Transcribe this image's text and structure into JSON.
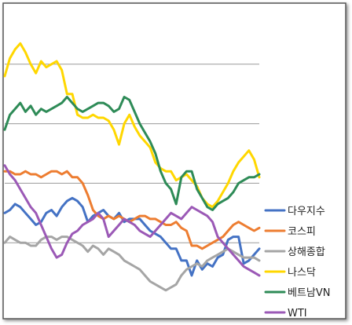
{
  "chart_data": {
    "type": "line",
    "title": "",
    "xlabel": "",
    "ylabel": "",
    "ylim": [
      0,
      100
    ],
    "grid": true,
    "legend_position": "right",
    "x": [
      1,
      2,
      3,
      4,
      5,
      6,
      7,
      8,
      9,
      10,
      11,
      12,
      13,
      14,
      15,
      16,
      17,
      18,
      19,
      20,
      21,
      22,
      23,
      24,
      25,
      26,
      27,
      28,
      29,
      30,
      31,
      32,
      33,
      34,
      35,
      36,
      37,
      38,
      39,
      40,
      41,
      42,
      43,
      44,
      45,
      46,
      47,
      48,
      49,
      50
    ],
    "series": [
      {
        "name": "다우지수",
        "color": "#4472C4",
        "values": [
          30,
          31,
          33,
          32,
          30,
          28,
          26,
          27,
          30,
          31,
          29,
          32,
          34,
          35,
          34,
          32,
          27,
          29,
          30,
          31,
          29,
          28,
          30,
          27,
          28,
          28,
          28,
          26,
          24,
          23,
          22,
          20,
          18,
          18,
          14,
          14,
          9,
          14,
          11,
          13,
          12,
          15,
          16,
          21,
          22,
          22,
          13,
          14,
          16,
          18
        ]
      },
      {
        "name": "코스피",
        "color": "#ED7D31",
        "values": [
          44,
          44,
          43,
          43,
          44,
          43,
          43,
          42,
          43,
          44,
          44,
          43,
          44,
          42,
          42,
          40,
          36,
          31,
          29,
          28,
          29,
          28,
          29,
          28,
          27,
          28,
          29,
          29,
          28,
          28,
          27,
          26,
          26,
          27,
          25,
          24,
          19,
          19,
          18,
          19,
          20,
          21,
          22,
          24,
          26,
          27,
          26,
          25,
          24,
          25
        ]
      },
      {
        "name": "상해종합",
        "color": "#A5A5A5",
        "values": [
          20,
          22,
          21,
          20,
          20,
          19,
          19,
          21,
          22,
          22,
          21,
          22,
          22,
          21,
          20,
          19,
          17,
          19,
          18,
          16,
          18,
          17,
          16,
          14,
          13,
          12,
          11,
          9,
          7,
          6,
          5,
          4,
          5,
          6,
          9,
          11,
          12,
          13,
          12,
          14,
          15,
          16,
          17,
          18,
          17,
          16,
          15,
          15,
          15,
          14
        ]
      },
      {
        "name": "나스닥",
        "color": "#FFD700",
        "values": [
          76,
          82,
          85,
          87,
          84,
          80,
          77,
          81,
          79,
          80,
          81,
          78,
          70,
          70,
          63,
          62,
          62,
          63,
          62,
          62,
          61,
          58,
          53,
          60,
          63,
          59,
          56,
          54,
          52,
          47,
          45,
          44,
          44,
          41,
          42,
          43,
          41,
          39,
          35,
          33,
          32,
          34,
          37,
          40,
          44,
          47,
          49,
          51,
          48,
          42
        ]
      },
      {
        "name": "베트남VN",
        "color": "#2E8B57",
        "values": [
          58,
          63,
          65,
          67,
          64,
          66,
          63,
          65,
          64,
          65,
          66,
          67,
          69,
          67,
          65,
          64,
          65,
          66,
          67,
          67,
          66,
          64,
          65,
          69,
          68,
          64,
          60,
          57,
          54,
          50,
          44,
          40,
          38,
          33,
          42,
          44,
          44,
          38,
          35,
          32,
          31,
          33,
          34,
          35,
          37,
          40,
          41,
          42,
          42,
          43
        ]
      },
      {
        "name": "WTI",
        "color": "#9B59B6",
        "values": [
          46,
          43,
          41,
          38,
          35,
          32,
          30,
          26,
          22,
          18,
          15,
          16,
          20,
          23,
          24,
          26,
          27,
          28,
          30,
          28,
          22,
          24,
          26,
          28,
          27,
          26,
          24,
          23,
          22,
          24,
          26,
          28,
          30,
          29,
          28,
          30,
          32,
          31,
          30,
          29,
          27,
          22,
          20,
          18,
          16,
          14,
          12,
          11,
          10,
          9
        ]
      }
    ]
  }
}
